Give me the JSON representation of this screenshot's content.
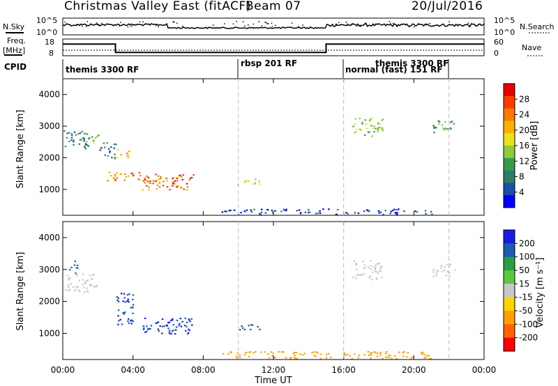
{
  "header": {
    "title": "Christmas Valley East (fitACF)",
    "beam": "Beam 07",
    "date": "20/Jul/2016"
  },
  "noise_panel": {
    "left_label": "N.Sky",
    "right_label": "N.Search",
    "ticks": [
      "10^5",
      "10^0"
    ]
  },
  "freq_panel": {
    "left_label_1": "Freq.",
    "left_label_2": "[MHz]",
    "left_ticks": [
      "18",
      "8"
    ],
    "right_label": "Nave",
    "right_ticks": [
      "60",
      "0"
    ]
  },
  "cpid": {
    "label": "CPID",
    "modes": [
      {
        "text": "themis 3300 RF",
        "start_h": 0.0
      },
      {
        "text": "rbsp 201 RF",
        "start_h": 10.0
      },
      {
        "text": "normal (fast) 151 RF",
        "start_h": 16.0
      },
      {
        "text": "themis 3300 RF",
        "start_h": 17.7
      }
    ]
  },
  "x_axis": {
    "title": "Time UT",
    "ticks": [
      "00:00",
      "04:00",
      "08:00",
      "12:00",
      "16:00",
      "20:00",
      "00:00"
    ],
    "range_h": [
      0,
      24
    ]
  },
  "power_panel": {
    "ylabel": "Slant Range [km]",
    "yticks": [
      "1000",
      "2000",
      "3000",
      "4000"
    ],
    "colorbar_title": "Power [dB]",
    "colorbar_ticks": [
      "4",
      "8",
      "12",
      "16",
      "20",
      "24",
      "28"
    ],
    "colors": [
      "#0000ff",
      "#1c4fa8",
      "#2f7f68",
      "#3a9a4c",
      "#8ccc3c",
      "#e6e619",
      "#ffb000",
      "#ff7800",
      "#ff3c00",
      "#e60000"
    ]
  },
  "velocity_panel": {
    "ylabel": "Slant Range [km]",
    "yticks": [
      "1000",
      "2000",
      "3000",
      "4000"
    ],
    "colorbar_title": "Velocity [m s⁻¹]",
    "colorbar_ticks": [
      "200",
      "100",
      "50",
      "15",
      "-15",
      "-50",
      "-100",
      "-200"
    ],
    "colors": [
      "#1a1ae6",
      "#1f5ab4",
      "#26a040",
      "#5ac83c",
      "#c8c8c8",
      "#ffd400",
      "#ffa000",
      "#ff6400",
      "#ff0000"
    ]
  },
  "chart_data": {
    "type": "heatmap",
    "title": "Christmas Valley East (fitACF) Beam 07 20/Jul/2016",
    "xlabel": "Time UT",
    "ylabel": "Slant Range [km]",
    "xlim_hours": [
      0,
      24
    ],
    "ylim_km": [
      180,
      4500
    ],
    "frequency_segments_mhz": [
      {
        "start_h": 0.0,
        "end_h": 3.0,
        "value": 15
      },
      {
        "start_h": 3.0,
        "end_h": 15.0,
        "value": 10
      },
      {
        "start_h": 15.0,
        "end_h": 24.0,
        "value": 15
      }
    ],
    "power_regions_db": [
      {
        "t0": 0.0,
        "t1": 1.5,
        "r0": 2300,
        "r1": 2900,
        "value": 10
      },
      {
        "t0": 1.0,
        "t1": 2.0,
        "r0": 2500,
        "r1": 2800,
        "value": 14
      },
      {
        "t0": 2.0,
        "t1": 3.0,
        "r0": 2000,
        "r1": 2500,
        "value": 8
      },
      {
        "t0": 3.0,
        "t1": 3.8,
        "r0": 2000,
        "r1": 2300,
        "value": 20
      },
      {
        "t0": 2.5,
        "t1": 4.5,
        "r0": 1300,
        "r1": 1600,
        "value": 24
      },
      {
        "t0": 4.5,
        "t1": 7.5,
        "r0": 1000,
        "r1": 1500,
        "value": 26
      },
      {
        "t0": 9.8,
        "t1": 11.2,
        "r0": 1150,
        "r1": 1350,
        "value": 18
      },
      {
        "t0": 16.5,
        "t1": 18.3,
        "r0": 2700,
        "r1": 3300,
        "value": 16
      },
      {
        "t0": 21.0,
        "t1": 22.3,
        "r0": 2800,
        "r1": 3200,
        "value": 12
      },
      {
        "t0": 9.0,
        "t1": 21.0,
        "r0": 200,
        "r1": 400,
        "value": 6
      }
    ],
    "velocity_regions_ms": [
      {
        "t0": 0.0,
        "t1": 2.0,
        "r0": 2300,
        "r1": 2900,
        "value": 0
      },
      {
        "t0": 0.3,
        "t1": 0.8,
        "r0": 2900,
        "r1": 3300,
        "value": 150
      },
      {
        "t0": 3.0,
        "t1": 4.0,
        "r0": 1300,
        "r1": 2300,
        "value": 200
      },
      {
        "t0": 4.5,
        "t1": 7.5,
        "r0": 1000,
        "r1": 1500,
        "value": 200
      },
      {
        "t0": 10.0,
        "t1": 11.2,
        "r0": 1100,
        "r1": 1300,
        "value": 150
      },
      {
        "t0": 16.5,
        "t1": 18.3,
        "r0": 2700,
        "r1": 3300,
        "value": 0
      },
      {
        "t0": 21.0,
        "t1": 22.3,
        "r0": 2800,
        "r1": 3200,
        "value": 0
      },
      {
        "t0": 9.0,
        "t1": 21.0,
        "r0": 200,
        "r1": 450,
        "value": -60
      }
    ]
  }
}
